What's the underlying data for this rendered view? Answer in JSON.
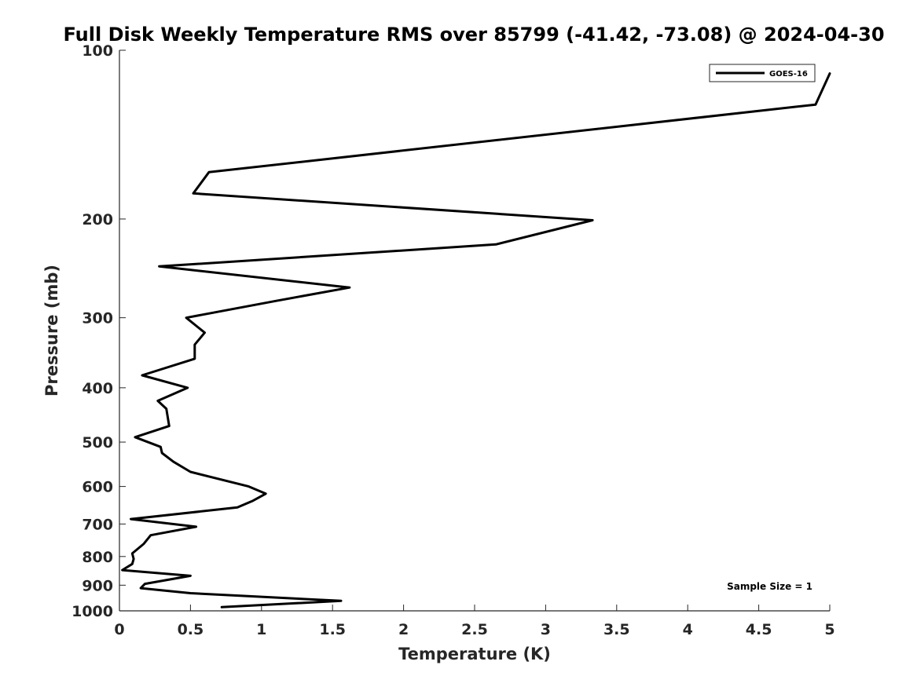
{
  "chart_data": {
    "type": "line",
    "title": "Full Disk Weekly Temperature RMS over 85799 (-41.42, -73.08) @ 2024-04-30",
    "xlabel": "Temperature (K)",
    "ylabel": "Pressure (mb)",
    "xlim": [
      0,
      5
    ],
    "ylim": [
      100,
      1000
    ],
    "yscale": "log",
    "y_reversed": true,
    "xticks": [
      0,
      0.5,
      1,
      1.5,
      2,
      2.5,
      3,
      3.5,
      4,
      4.5,
      5
    ],
    "xtick_labels": [
      "0",
      "0.5",
      "1",
      "1.5",
      "2",
      "2.5",
      "3",
      "3.5",
      "4",
      "4.5",
      "5"
    ],
    "yticks": [
      100,
      200,
      300,
      400,
      500,
      600,
      700,
      800,
      900,
      1000
    ],
    "ytick_labels": [
      "100",
      "200",
      "300",
      "400",
      "500",
      "600",
      "700",
      "800",
      "900",
      "1000"
    ],
    "grid": false,
    "legend_position": "top-right",
    "series": [
      {
        "name": "GOES-16",
        "color": "#000000",
        "points": [
          [
            5.0,
            110
          ],
          [
            4.9,
            125
          ],
          [
            0.63,
            165
          ],
          [
            0.52,
            180
          ],
          [
            3.33,
            201
          ],
          [
            2.65,
            222
          ],
          [
            0.28,
            243
          ],
          [
            1.62,
            265
          ],
          [
            1.1,
            280
          ],
          [
            0.47,
            300
          ],
          [
            0.6,
            319
          ],
          [
            0.53,
            335
          ],
          [
            0.53,
            355
          ],
          [
            0.16,
            380
          ],
          [
            0.48,
            400
          ],
          [
            0.27,
            422
          ],
          [
            0.33,
            436
          ],
          [
            0.35,
            468
          ],
          [
            0.11,
            490
          ],
          [
            0.29,
            510
          ],
          [
            0.3,
            523
          ],
          [
            0.38,
            542
          ],
          [
            0.5,
            565
          ],
          [
            0.91,
            600
          ],
          [
            1.03,
            618
          ],
          [
            0.94,
            636
          ],
          [
            0.83,
            654
          ],
          [
            0.08,
            686
          ],
          [
            0.54,
            708
          ],
          [
            0.22,
            733
          ],
          [
            0.17,
            760
          ],
          [
            0.09,
            790
          ],
          [
            0.1,
            808
          ],
          [
            0.09,
            825
          ],
          [
            0.02,
            846
          ],
          [
            0.5,
            866
          ],
          [
            0.18,
            895
          ],
          [
            0.15,
            911
          ],
          [
            0.5,
            930
          ],
          [
            1.56,
            960
          ],
          [
            0.72,
            985
          ]
        ]
      }
    ],
    "annotations": [
      {
        "text": "Sample Size = 1",
        "position": "bottom-right"
      }
    ]
  }
}
